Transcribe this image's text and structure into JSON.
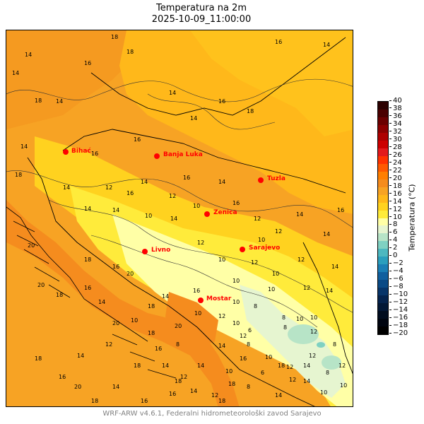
{
  "title": "Temperatura na 2m",
  "subtitle": "2025-10-09_11:00:00",
  "footer": "WRF-ARW v4.6.1, Federalni hidrometeorološki zavod Sarajevo",
  "colorbar": {
    "label": "Temperatura (°C)",
    "ticks": [
      "40",
      "38",
      "36",
      "34",
      "32",
      "30",
      "28",
      "26",
      "24",
      "22",
      "20",
      "18",
      "16",
      "14",
      "12",
      "10",
      "8",
      "6",
      "4",
      "2",
      "0",
      "−2",
      "−4",
      "−6",
      "−8",
      "−10",
      "−12",
      "−14",
      "−16",
      "−18",
      "−20"
    ],
    "colors": [
      "#2b0000",
      "#4a0000",
      "#6b0000",
      "#8c0000",
      "#ad0000",
      "#cc0000",
      "#e31a1c",
      "#ff3300",
      "#ff5a00",
      "#ff7f00",
      "#f58c1e",
      "#f7a324",
      "#ffb81a",
      "#ffd21f",
      "#ffeb3b",
      "#ffffa6",
      "#e6f5d0",
      "#b7e4c7",
      "#7fd1c2",
      "#4db8c0",
      "#2b9fbd",
      "#1b7fb5",
      "#115f9e",
      "#0b4a85",
      "#083569",
      "#05234d",
      "#031836",
      "#010d1f",
      "#000510",
      "#000000"
    ]
  },
  "cities": [
    {
      "name": "Bihać"
    },
    {
      "name": "Banja Luka"
    },
    {
      "name": "Tuzla"
    },
    {
      "name": "Zenica"
    },
    {
      "name": "Sarajevo"
    },
    {
      "name": "Livno"
    },
    {
      "name": "Mostar"
    }
  ],
  "contour_labels": [
    "14",
    "18",
    "14",
    "16",
    "18",
    "14",
    "16",
    "18",
    "14",
    "14",
    "16",
    "18",
    "16",
    "14",
    "14",
    "16",
    "18",
    "14",
    "14",
    "16",
    "14",
    "12",
    "14",
    "16",
    "12",
    "10",
    "14",
    "12",
    "10",
    "14",
    "16",
    "12",
    "10",
    "12",
    "14",
    "10",
    "12",
    "10",
    "12",
    "14",
    "16",
    "10",
    "8",
    "10",
    "12",
    "14",
    "8",
    "10",
    "12",
    "14",
    "20",
    "18",
    "16",
    "20",
    "20",
    "18",
    "16",
    "14",
    "12",
    "8",
    "10",
    "8",
    "12",
    "8",
    "10",
    "14",
    "12",
    "10",
    "16",
    "18",
    "18",
    "14",
    "12",
    "14",
    "12",
    "10",
    "20",
    "18",
    "16",
    "14",
    "20",
    "18",
    "14",
    "12",
    "10",
    "16",
    "14",
    "18",
    "18",
    "16",
    "14",
    "12",
    "10",
    "18",
    "16",
    "14",
    "12",
    "10",
    "8",
    "6",
    "18",
    "20",
    "18",
    "14",
    "16",
    "14",
    "8",
    "12",
    "10",
    "6",
    "8",
    "10"
  ]
}
